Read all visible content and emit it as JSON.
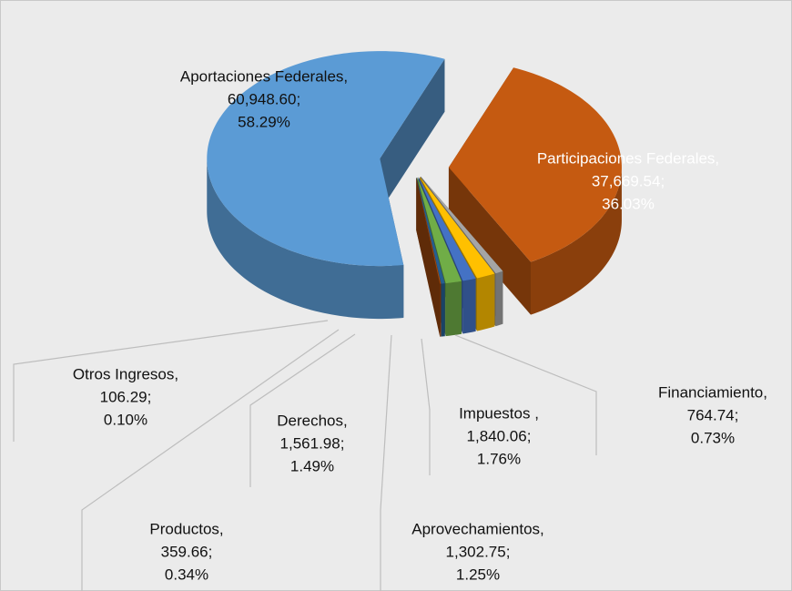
{
  "chart_data": {
    "type": "pie3d",
    "categories": [
      "Participaciones Federales,",
      "Financiamiento,",
      "Impuestos ,",
      "Aprovechamientos,",
      "Derechos,",
      "Productos,",
      "Otros Ingresos,",
      "Aportaciones Federales,"
    ],
    "values": [
      37669.54,
      764.74,
      1840.06,
      1302.75,
      1561.98,
      359.66,
      106.29,
      60948.6
    ],
    "value_labels": [
      "37,669.54;",
      "764.74;",
      "1,840.06;",
      "1,302.75;",
      "1,561.98;",
      "359.66;",
      "106.29;",
      "60,948.60;"
    ],
    "percentages": [
      36.03,
      0.73,
      1.76,
      1.25,
      1.49,
      0.34,
      0.1,
      58.29
    ],
    "percentage_labels": [
      "36.03%",
      "0.73%",
      "1.76%",
      "1.25%",
      "1.49%",
      "0.34%",
      "0.10%",
      "58.29%"
    ],
    "colors": [
      "#c55a11",
      "#a5a5a5",
      "#ffc000",
      "#4472c4",
      "#70ad47",
      "#255e91",
      "#9e480e",
      "#5b9bd5"
    ]
  }
}
